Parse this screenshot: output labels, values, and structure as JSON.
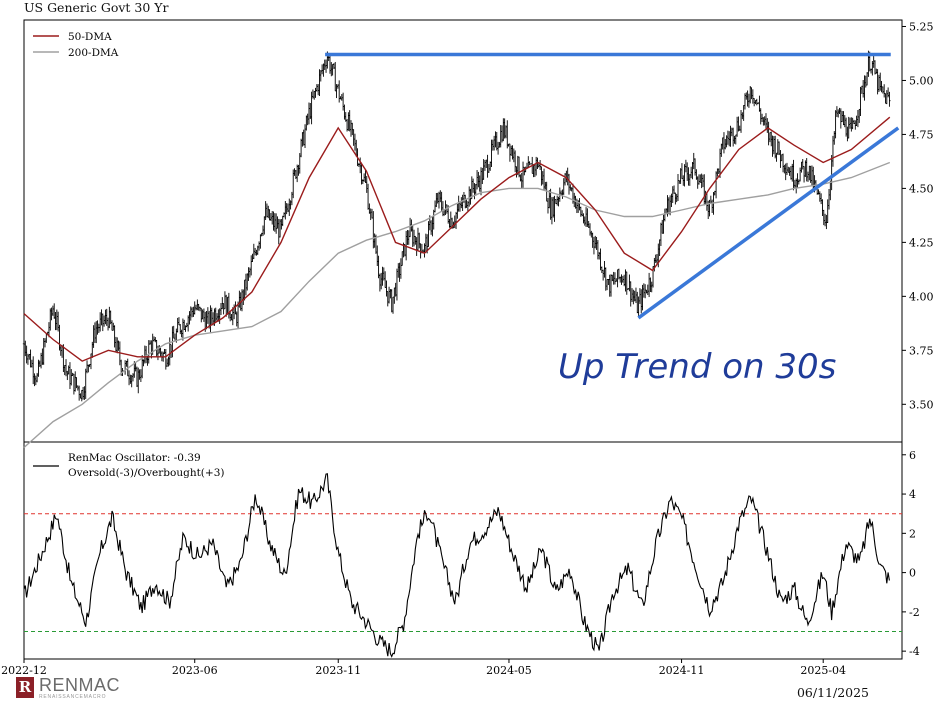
{
  "title": "US Generic Govt 30 Yr",
  "footer_date": "06/11/2025",
  "logo": {
    "mark": "R",
    "word": "RENMAC",
    "sub": "RENAISSANCEMACRO"
  },
  "annotation": "Up Trend on 30s",
  "colors": {
    "price_bars": "#000000",
    "dma50": "#9b1c1c",
    "dma200": "#a0a0a0",
    "resistance_line": "#3a78d8",
    "trend_line": "#3a78d8",
    "oscillator": "#000000",
    "overbought_line": "#e0342f",
    "oversold_line": "#2a9a36",
    "annotation": "#1f3c99"
  },
  "chart_data": [
    {
      "type": "ohlc",
      "panel": "price",
      "x_range": [
        "2022-12",
        "2025-06"
      ],
      "x_ticks": [
        "2022-12",
        "2023-06",
        "2023-11",
        "2024-05",
        "2024-11",
        "2025-04"
      ],
      "y_ticks": [
        "3.50",
        "3.75",
        "4.00",
        "4.25",
        "4.50",
        "4.75",
        "5.00",
        "5.25"
      ],
      "ylim": [
        3.33,
        5.28
      ],
      "legend": {
        "placement": "top-left",
        "entries": [
          "50-DMA",
          "200-DMA"
        ]
      },
      "price_points": [
        [
          "2022-12-01",
          3.78
        ],
        [
          "2022-12-15",
          3.62
        ],
        [
          "2023-01-01",
          3.95
        ],
        [
          "2023-01-15",
          3.65
        ],
        [
          "2023-02-01",
          3.55
        ],
        [
          "2023-02-15",
          3.85
        ],
        [
          "2023-03-01",
          3.9
        ],
        [
          "2023-03-15",
          3.68
        ],
        [
          "2023-04-01",
          3.62
        ],
        [
          "2023-04-15",
          3.78
        ],
        [
          "2023-05-01",
          3.72
        ],
        [
          "2023-05-15",
          3.85
        ],
        [
          "2023-06-01",
          3.95
        ],
        [
          "2023-06-15",
          3.88
        ],
        [
          "2023-07-01",
          3.98
        ],
        [
          "2023-07-15",
          3.9
        ],
        [
          "2023-08-01",
          4.15
        ],
        [
          "2023-08-15",
          4.38
        ],
        [
          "2023-09-01",
          4.3
        ],
        [
          "2023-09-15",
          4.55
        ],
        [
          "2023-10-01",
          4.85
        ],
        [
          "2023-10-20",
          5.12
        ],
        [
          "2023-11-01",
          4.95
        ],
        [
          "2023-11-15",
          4.75
        ],
        [
          "2023-12-01",
          4.5
        ],
        [
          "2023-12-15",
          4.1
        ],
        [
          "2023-12-28",
          3.97
        ],
        [
          "2024-01-15",
          4.3
        ],
        [
          "2024-02-01",
          4.22
        ],
        [
          "2024-02-15",
          4.45
        ],
        [
          "2024-03-01",
          4.35
        ],
        [
          "2024-03-15",
          4.45
        ],
        [
          "2024-04-01",
          4.55
        ],
        [
          "2024-04-25",
          4.78
        ],
        [
          "2024-05-15",
          4.55
        ],
        [
          "2024-06-01",
          4.62
        ],
        [
          "2024-06-15",
          4.4
        ],
        [
          "2024-07-01",
          4.55
        ],
        [
          "2024-07-15",
          4.4
        ],
        [
          "2024-08-01",
          4.25
        ],
        [
          "2024-08-15",
          4.05
        ],
        [
          "2024-09-01",
          4.1
        ],
        [
          "2024-09-15",
          3.95
        ],
        [
          "2024-10-01",
          4.1
        ],
        [
          "2024-10-15",
          4.4
        ],
        [
          "2024-11-01",
          4.55
        ],
        [
          "2024-11-15",
          4.6
        ],
        [
          "2024-12-01",
          4.4
        ],
        [
          "2024-12-15",
          4.7
        ],
        [
          "2025-01-01",
          4.8
        ],
        [
          "2025-01-14",
          4.97
        ],
        [
          "2025-02-01",
          4.75
        ],
        [
          "2025-02-15",
          4.65
        ],
        [
          "2025-03-01",
          4.55
        ],
        [
          "2025-03-15",
          4.6
        ],
        [
          "2025-04-04",
          4.35
        ],
        [
          "2025-04-15",
          4.85
        ],
        [
          "2025-05-01",
          4.75
        ],
        [
          "2025-05-21",
          5.1
        ],
        [
          "2025-06-01",
          4.95
        ],
        [
          "2025-06-11",
          4.9
        ]
      ],
      "dma50_points": [
        [
          "2022-12-01",
          3.92
        ],
        [
          "2023-01-01",
          3.8
        ],
        [
          "2023-02-01",
          3.7
        ],
        [
          "2023-03-01",
          3.75
        ],
        [
          "2023-04-01",
          3.72
        ],
        [
          "2023-05-01",
          3.72
        ],
        [
          "2023-06-01",
          3.82
        ],
        [
          "2023-07-01",
          3.9
        ],
        [
          "2023-08-01",
          4.02
        ],
        [
          "2023-09-01",
          4.25
        ],
        [
          "2023-10-01",
          4.55
        ],
        [
          "2023-11-01",
          4.78
        ],
        [
          "2023-12-01",
          4.58
        ],
        [
          "2024-01-01",
          4.25
        ],
        [
          "2024-02-01",
          4.2
        ],
        [
          "2024-03-01",
          4.32
        ],
        [
          "2024-04-01",
          4.45
        ],
        [
          "2024-05-01",
          4.55
        ],
        [
          "2024-06-01",
          4.62
        ],
        [
          "2024-07-01",
          4.55
        ],
        [
          "2024-08-01",
          4.4
        ],
        [
          "2024-09-01",
          4.2
        ],
        [
          "2024-10-01",
          4.12
        ],
        [
          "2024-11-01",
          4.3
        ],
        [
          "2024-12-01",
          4.5
        ],
        [
          "2025-01-01",
          4.68
        ],
        [
          "2025-02-01",
          4.78
        ],
        [
          "2025-03-01",
          4.7
        ],
        [
          "2025-04-01",
          4.62
        ],
        [
          "2025-05-01",
          4.68
        ],
        [
          "2025-06-11",
          4.83
        ]
      ],
      "dma200_points": [
        [
          "2022-12-01",
          3.3
        ],
        [
          "2023-01-01",
          3.42
        ],
        [
          "2023-02-01",
          3.5
        ],
        [
          "2023-03-01",
          3.6
        ],
        [
          "2023-04-01",
          3.7
        ],
        [
          "2023-05-01",
          3.78
        ],
        [
          "2023-06-01",
          3.82
        ],
        [
          "2023-07-01",
          3.84
        ],
        [
          "2023-08-01",
          3.86
        ],
        [
          "2023-09-01",
          3.93
        ],
        [
          "2023-10-01",
          4.07
        ],
        [
          "2023-11-01",
          4.2
        ],
        [
          "2023-12-01",
          4.26
        ],
        [
          "2024-01-01",
          4.3
        ],
        [
          "2024-02-01",
          4.35
        ],
        [
          "2024-03-01",
          4.42
        ],
        [
          "2024-04-01",
          4.48
        ],
        [
          "2024-05-01",
          4.5
        ],
        [
          "2024-06-01",
          4.5
        ],
        [
          "2024-07-01",
          4.46
        ],
        [
          "2024-08-01",
          4.4
        ],
        [
          "2024-09-01",
          4.37
        ],
        [
          "2024-10-01",
          4.37
        ],
        [
          "2024-11-01",
          4.4
        ],
        [
          "2024-12-01",
          4.43
        ],
        [
          "2025-01-01",
          4.45
        ],
        [
          "2025-02-01",
          4.47
        ],
        [
          "2025-03-01",
          4.5
        ],
        [
          "2025-04-01",
          4.52
        ],
        [
          "2025-05-01",
          4.55
        ],
        [
          "2025-06-11",
          4.62
        ]
      ],
      "resistance_line": {
        "value": 5.12,
        "from": "2023-10-18",
        "to": "2025-06-12"
      },
      "trend_line": {
        "from": [
          "2024-09-16",
          3.9
        ],
        "to": [
          "2025-06-20",
          4.78
        ]
      }
    },
    {
      "type": "line",
      "panel": "oscillator",
      "x_range": [
        "2022-12",
        "2025-06"
      ],
      "ylim": [
        -4.4,
        6.6
      ],
      "y_ticks": [
        "-4",
        "-2",
        "0",
        "2",
        "4",
        "6"
      ],
      "legend": {
        "placement": "top-left",
        "entries": [
          "RenMac Oscillator: -0.39",
          "Oversold(-3)/Overbought(+3)"
        ]
      },
      "overbought": 3,
      "oversold": -3,
      "last_value": -0.39,
      "points": [
        [
          "2022-12-01",
          -1.2
        ],
        [
          "2022-12-20",
          1.0
        ],
        [
          "2023-01-05",
          3.0
        ],
        [
          "2023-01-20",
          -0.5
        ],
        [
          "2023-02-05",
          -2.5
        ],
        [
          "2023-02-20",
          1.0
        ],
        [
          "2023-03-05",
          2.8
        ],
        [
          "2023-03-20",
          0.0
        ],
        [
          "2023-04-05",
          -1.8
        ],
        [
          "2023-04-20",
          -0.5
        ],
        [
          "2023-05-05",
          -1.5
        ],
        [
          "2023-05-20",
          1.8
        ],
        [
          "2023-06-05",
          0.8
        ],
        [
          "2023-06-20",
          1.5
        ],
        [
          "2023-07-05",
          -0.8
        ],
        [
          "2023-07-20",
          0.5
        ],
        [
          "2023-08-05",
          4.0
        ],
        [
          "2023-08-20",
          1.5
        ],
        [
          "2023-09-05",
          -0.2
        ],
        [
          "2023-09-20",
          4.2
        ],
        [
          "2023-10-05",
          3.5
        ],
        [
          "2023-10-20",
          4.8
        ],
        [
          "2023-11-01",
          1.0
        ],
        [
          "2023-11-15",
          -1.5
        ],
        [
          "2023-12-01",
          -2.5
        ],
        [
          "2023-12-15",
          -3.5
        ],
        [
          "2023-12-28",
          -4.0
        ],
        [
          "2024-01-10",
          -2.5
        ],
        [
          "2024-01-25",
          2.0
        ],
        [
          "2024-02-05",
          3.2
        ],
        [
          "2024-02-20",
          0.5
        ],
        [
          "2024-03-05",
          -1.5
        ],
        [
          "2024-03-20",
          1.5
        ],
        [
          "2024-04-05",
          2.2
        ],
        [
          "2024-04-20",
          3.2
        ],
        [
          "2024-05-05",
          1.0
        ],
        [
          "2024-05-20",
          -0.8
        ],
        [
          "2024-06-05",
          1.2
        ],
        [
          "2024-06-20",
          -1.0
        ],
        [
          "2024-07-05",
          0.2
        ],
        [
          "2024-07-20",
          -2.5
        ],
        [
          "2024-08-05",
          -4.1
        ],
        [
          "2024-08-20",
          -1.0
        ],
        [
          "2024-09-05",
          0.2
        ],
        [
          "2024-09-20",
          -1.8
        ],
        [
          "2024-10-05",
          1.5
        ],
        [
          "2024-10-20",
          3.7
        ],
        [
          "2024-11-01",
          2.8
        ],
        [
          "2024-11-15",
          0.5
        ],
        [
          "2024-12-01",
          -1.8
        ],
        [
          "2024-12-15",
          -0.5
        ],
        [
          "2025-01-01",
          2.5
        ],
        [
          "2025-01-14",
          3.8
        ],
        [
          "2025-02-01",
          1.0
        ],
        [
          "2025-02-15",
          -1.5
        ],
        [
          "2025-03-01",
          -0.8
        ],
        [
          "2025-03-15",
          -2.6
        ],
        [
          "2025-04-01",
          0.0
        ],
        [
          "2025-04-10",
          -2.0
        ],
        [
          "2025-04-25",
          1.5
        ],
        [
          "2025-05-10",
          0.5
        ],
        [
          "2025-05-21",
          2.8
        ],
        [
          "2025-06-01",
          0.3
        ],
        [
          "2025-06-11",
          -0.39
        ]
      ]
    }
  ]
}
